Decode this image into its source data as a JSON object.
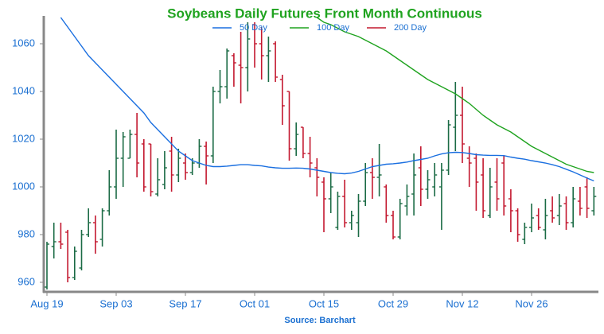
{
  "chart_data": {
    "type": "ohlc",
    "title": "Soybeans Daily Futures Front Month Continuous",
    "source": "Source: Barchart",
    "categories": [
      "Aug 19",
      null,
      null,
      null,
      null,
      null,
      null,
      null,
      null,
      null,
      "Sep 03",
      null,
      null,
      null,
      null,
      null,
      null,
      null,
      null,
      null,
      "Sep 17",
      null,
      null,
      null,
      null,
      null,
      null,
      null,
      null,
      null,
      "Oct 01",
      null,
      null,
      null,
      null,
      null,
      null,
      null,
      null,
      null,
      "Oct 15",
      null,
      null,
      null,
      null,
      null,
      null,
      null,
      null,
      null,
      "Oct 29",
      null,
      null,
      null,
      null,
      null,
      null,
      null,
      null,
      null,
      "Nov 12",
      null,
      null,
      null,
      null,
      null,
      null,
      null,
      null,
      null,
      "Nov 26",
      null,
      null,
      null,
      null,
      null,
      null,
      null,
      null,
      null
    ],
    "open": [
      958,
      975,
      977,
      981,
      962,
      966,
      980,
      985,
      978,
      990,
      1000,
      1012,
      1012,
      1022,
      1018,
      1018,
      997,
      1001,
      1015,
      1005,
      1010,
      1006,
      1010,
      1017,
      1013,
      1040,
      1042,
      1055,
      1051,
      1050,
      1068,
      1060,
      1055,
      1060,
      1045,
      1040,
      1016,
      1025,
      1014,
      1008,
      1002,
      995,
      983,
      996,
      985,
      985,
      994,
      1006,
      1004,
      1000,
      988,
      979,
      992,
      997,
      1008,
      999,
      1000,
      1000,
      1007,
      1025,
      1030,
      1012,
      1012,
      1005,
      988,
      1002,
      1010,
      995,
      990,
      978,
      983,
      988,
      982,
      990,
      988,
      993,
      985,
      994,
      1000,
      990
    ],
    "high": [
      977,
      985,
      985,
      982,
      975,
      982,
      991,
      988,
      991,
      1007,
      1024,
      1023,
      1024,
      1031,
      1020,
      1018,
      1012,
      1015,
      1021,
      1016,
      1014,
      1012,
      1020,
      1019,
      1042,
      1049,
      1058,
      1056,
      1065,
      1069,
      1069,
      1067,
      1063,
      1061,
      1047,
      1040,
      1027,
      1025,
      1021,
      1012,
      1004,
      1006,
      998,
      1003,
      990,
      997,
      1010,
      1012,
      1018,
      1001,
      990,
      995,
      1001,
      1014,
      1017,
      1007,
      1010,
      1010,
      1028,
      1044,
      1042,
      1017,
      1014,
      1012,
      1008,
      1012,
      1013,
      999,
      991,
      985,
      993,
      991,
      995,
      996,
      997,
      996,
      1000,
      1000,
      1004,
      1000
    ],
    "low": [
      957,
      970,
      974,
      960,
      961,
      965,
      979,
      972,
      975,
      988,
      995,
      1000,
      1012,
      1004,
      998,
      996,
      996,
      999,
      998,
      1002,
      1003,
      1005,
      1008,
      1001,
      1010,
      1035,
      1037,
      1042,
      1035,
      1040,
      1050,
      1045,
      1044,
      1044,
      1026,
      1011,
      1013,
      1012,
      1004,
      996,
      981,
      989,
      982,
      983,
      982,
      979,
      992,
      995,
      996,
      985,
      978,
      978,
      988,
      988,
      992,
      995,
      996,
      982,
      1005,
      1015,
      1010,
      1000,
      990,
      987,
      987,
      990,
      988,
      981,
      977,
      976,
      981,
      982,
      978,
      985,
      984,
      982,
      983,
      988,
      987,
      988
    ],
    "close": [
      976,
      977,
      976,
      962,
      973,
      980,
      985,
      977,
      990,
      1000,
      1012,
      1021,
      1022,
      1010,
      1000,
      998,
      1003,
      1008,
      1005,
      1012,
      1006,
      1010,
      1017,
      1013,
      1040,
      1042,
      1057,
      1052,
      1050,
      1062,
      1060,
      1055,
      1057,
      1046,
      1034,
      1016,
      1022,
      1014,
      1010,
      1004,
      995,
      1000,
      996,
      985,
      988,
      994,
      1006,
      1004,
      1005,
      988,
      979,
      993,
      996,
      1005,
      999,
      1003,
      1005,
      1007,
      1026,
      1030,
      1018,
      1010,
      1002,
      990,
      1000,
      995,
      992,
      990,
      980,
      983,
      987,
      983,
      988,
      987,
      992,
      985,
      995,
      991,
      991,
      996
    ],
    "up_color": "#1b6b45",
    "down_color": "#c3182f",
    "series": [
      {
        "name": "50 Day",
        "color": "#1a6fe0",
        "values": [
          null,
          null,
          1071,
          1067,
          1063,
          1059,
          1055,
          1052,
          1049,
          1046,
          1043,
          1040,
          1037,
          1034,
          1031,
          1027,
          1024,
          1021,
          1018,
          1015,
          1013,
          1011,
          1010,
          1009,
          1008.5,
          1008.5,
          1008.7,
          1009,
          1009.3,
          1009.3,
          1009,
          1008.8,
          1008.3,
          1008,
          1007.8,
          1007.8,
          1007.9,
          1007.8,
          1007.5,
          1007,
          1006.5,
          1006,
          1005.7,
          1005.5,
          1005.8,
          1006.5,
          1007.5,
          1008.5,
          1009,
          1009.5,
          1009.7,
          1010,
          1010.4,
          1011,
          1011.5,
          1012,
          1013,
          1013.8,
          1014.3,
          1014.5,
          1014.4,
          1014,
          1013.5,
          1013.3,
          1013.2,
          1013.2,
          1013.1,
          1012.5,
          1012,
          1011.6,
          1011,
          1010.5,
          1010,
          1009.3,
          1008.5,
          1007.4,
          1006.3,
          1005,
          1003.7,
          1002.5
        ]
      },
      {
        "name": "100 Day",
        "color": "#1fa31f",
        "values": [
          null,
          null,
          null,
          null,
          null,
          null,
          null,
          null,
          null,
          null,
          null,
          null,
          null,
          null,
          null,
          null,
          null,
          null,
          null,
          null,
          null,
          null,
          null,
          null,
          null,
          null,
          null,
          null,
          null,
          null,
          null,
          null,
          null,
          null,
          null,
          null,
          null,
          null,
          null,
          1071,
          1069,
          1068,
          1066.5,
          1065,
          1064,
          1063,
          1061.5,
          1060,
          1058.5,
          1057,
          1055,
          1053,
          1051,
          1049,
          1047,
          1045,
          1043.5,
          1042,
          1040.5,
          1039,
          1037,
          1035,
          1032.5,
          1030,
          1028,
          1026,
          1024.5,
          1023,
          1021,
          1019,
          1017,
          1015.5,
          1014,
          1012.5,
          1011,
          1009.5,
          1008.5,
          1007.5,
          1006.5,
          1006
        ]
      },
      {
        "name": "200 Day",
        "color": "#c3182f"
      }
    ],
    "ylim": [
      956,
      1071
    ],
    "yticks": [
      960,
      980,
      1000,
      1020,
      1040,
      1060
    ],
    "legend": "top"
  }
}
